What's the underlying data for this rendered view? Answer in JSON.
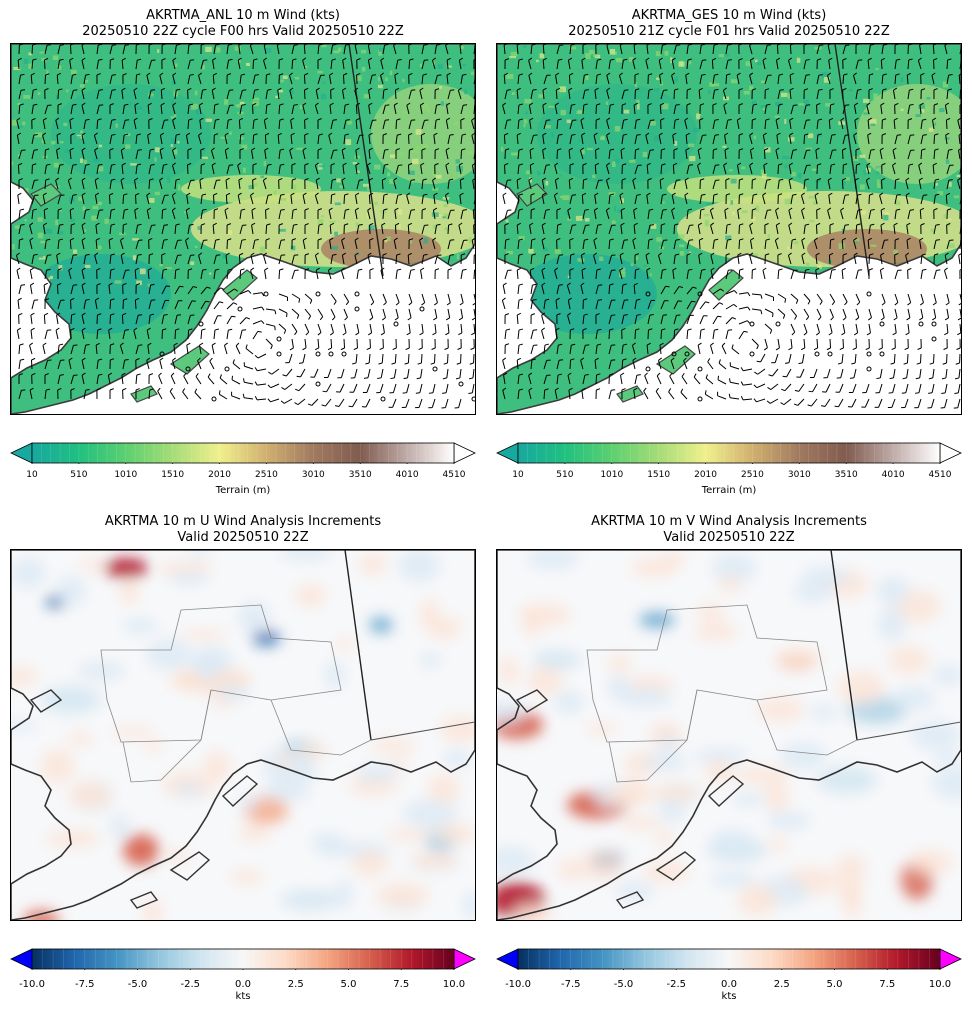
{
  "chart_data": [
    {
      "type": "heatmap",
      "title_line1": "AKRTMA_ANL 10 m Wind (kts)",
      "title_line2": "20250510 22Z cycle F00 hrs Valid 20250510 22Z",
      "colorbar": {
        "label": "Terrain (m)",
        "ticks": [
          "10",
          "510",
          "1010",
          "1510",
          "2010",
          "2510",
          "3010",
          "3510",
          "4010",
          "4510"
        ],
        "range": [
          10,
          4510
        ],
        "extend": "both",
        "cmap": "terrain"
      },
      "overlay": "wind barbs"
    },
    {
      "type": "heatmap",
      "title_line1": "AKRTMA_GES 10 m Wind (kts)",
      "title_line2": "20250510 21Z cycle F01 hrs Valid 20250510 22Z",
      "colorbar": {
        "label": "Terrain (m)",
        "ticks": [
          "10",
          "510",
          "1010",
          "1510",
          "2010",
          "2510",
          "3010",
          "3510",
          "4010",
          "4510"
        ],
        "range": [
          10,
          4510
        ],
        "extend": "both",
        "cmap": "terrain"
      },
      "overlay": "wind barbs"
    },
    {
      "type": "heatmap",
      "title_line1": "AKRTMA 10 m U Wind Analysis Increments",
      "title_line2": "Valid 20250510 22Z",
      "colorbar": {
        "label": "kts",
        "ticks": [
          "-10.0",
          "-7.5",
          "-5.0",
          "-2.5",
          "0.0",
          "2.5",
          "5.0",
          "7.5",
          "10.0"
        ],
        "range": [
          -10,
          10
        ],
        "extend": "both",
        "cmap": "RdBu_r"
      }
    },
    {
      "type": "heatmap",
      "title_line1": "AKRTMA 10 m V Wind Analysis Increments",
      "title_line2": "Valid 20250510 22Z",
      "colorbar": {
        "label": "kts",
        "ticks": [
          "-10.0",
          "-7.5",
          "-5.0",
          "-2.5",
          "0.0",
          "2.5",
          "5.0",
          "7.5",
          "10.0"
        ],
        "range": [
          -10,
          10
        ],
        "extend": "both",
        "cmap": "RdBu_r"
      }
    }
  ],
  "colors": {
    "terrain_stops": [
      "#17a8a0",
      "#20c080",
      "#5cd070",
      "#a6dc78",
      "#f0f08c",
      "#d0b070",
      "#a07a60",
      "#805c50",
      "#c0aca8",
      "#ffffff"
    ],
    "diverging_stops": [
      "#053061",
      "#2166ac",
      "#4393c3",
      "#92c5de",
      "#d1e5f0",
      "#f7f7f7",
      "#fddbc7",
      "#f4a582",
      "#d6604d",
      "#b2182b",
      "#67001f"
    ],
    "under_diverging": "#0000ff",
    "over_diverging": "#ff00ff"
  }
}
